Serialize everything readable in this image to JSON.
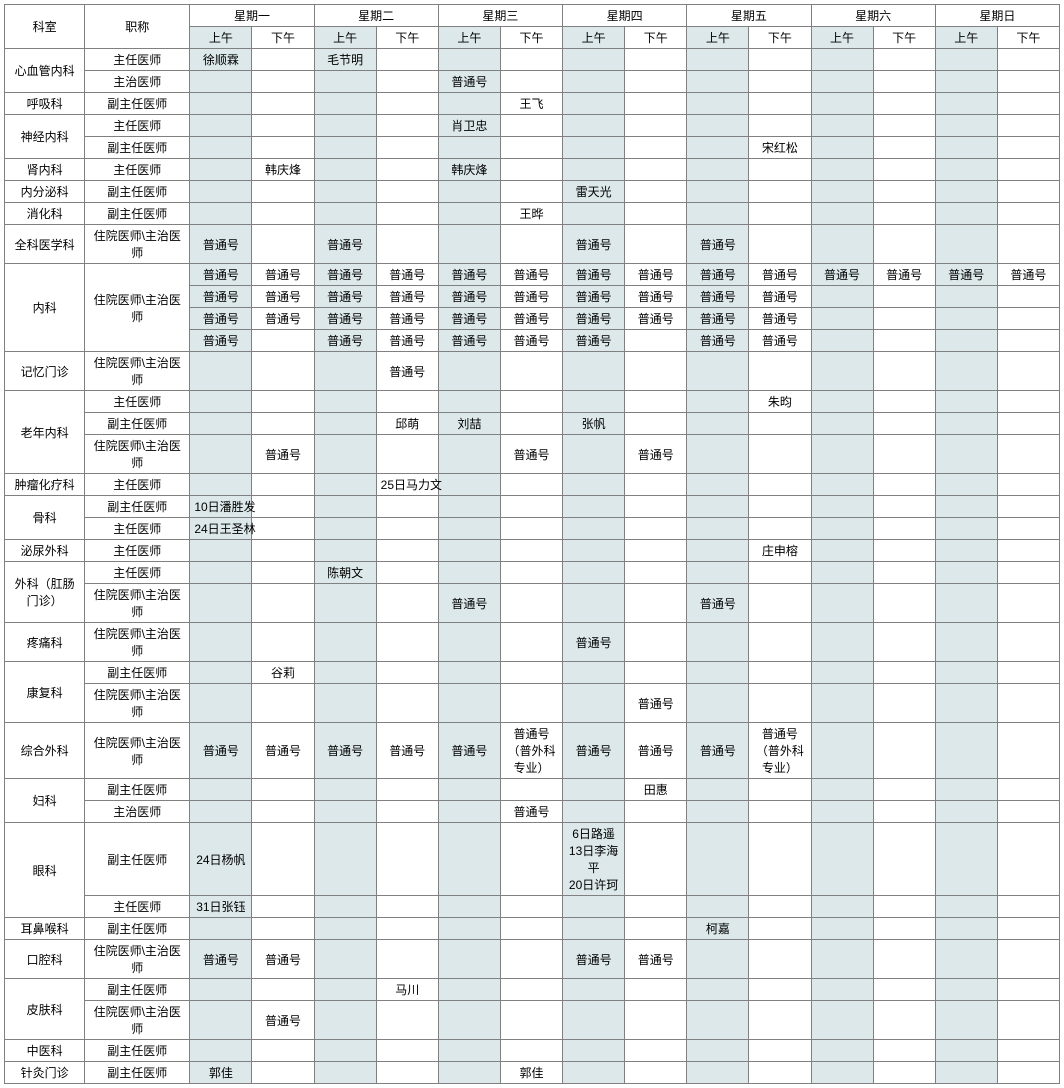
{
  "colors": {
    "am_bg": "#dce8ea",
    "border": "#808080",
    "bg": "#ffffff",
    "text": "#000000"
  },
  "fontsize": 12,
  "header": {
    "dept": "科室",
    "title": "职称",
    "days": [
      "星期一",
      "星期二",
      "星期三",
      "星期四",
      "星期五",
      "星期六",
      "星期日"
    ],
    "am": "上午",
    "pm": "下午"
  },
  "rows": [
    {
      "dept": "心血管内科",
      "deptRowspan": 2,
      "title": "主任医师",
      "cells": [
        "徐顺霖",
        "",
        "毛节明",
        "",
        "",
        "",
        "",
        "",
        "",
        "",
        "",
        "",
        "",
        ""
      ]
    },
    {
      "title": "主治医师",
      "cells": [
        "",
        "",
        "",
        "",
        "普通号",
        "",
        "",
        "",
        "",
        "",
        "",
        "",
        "",
        ""
      ]
    },
    {
      "dept": "呼吸科",
      "deptRowspan": 1,
      "title": "副主任医师",
      "cells": [
        "",
        "",
        "",
        "",
        "",
        "王飞",
        "",
        "",
        "",
        "",
        "",
        "",
        "",
        ""
      ]
    },
    {
      "dept": "神经内科",
      "deptRowspan": 2,
      "title": "主任医师",
      "cells": [
        "",
        "",
        "",
        "",
        "肖卫忠",
        "",
        "",
        "",
        "",
        "",
        "",
        "",
        "",
        ""
      ]
    },
    {
      "title": "副主任医师",
      "cells": [
        "",
        "",
        "",
        "",
        "",
        "",
        "",
        "",
        "",
        "宋红松",
        "",
        "",
        "",
        ""
      ]
    },
    {
      "dept": "肾内科",
      "deptRowspan": 1,
      "title": "主任医师",
      "cells": [
        "",
        "韩庆烽",
        "",
        "",
        "韩庆烽",
        "",
        "",
        "",
        "",
        "",
        "",
        "",
        "",
        ""
      ]
    },
    {
      "dept": "内分泌科",
      "deptRowspan": 1,
      "title": "副主任医师",
      "cells": [
        "",
        "",
        "",
        "",
        "",
        "",
        "雷天光",
        "",
        "",
        "",
        "",
        "",
        "",
        ""
      ]
    },
    {
      "dept": "消化科",
      "deptRowspan": 1,
      "title": "副主任医师",
      "cells": [
        "",
        "",
        "",
        "",
        "",
        "王晔",
        "",
        "",
        "",
        "",
        "",
        "",
        "",
        ""
      ]
    },
    {
      "dept": "全科医学科",
      "deptRowspan": 1,
      "title": "住院医师\\主治医师",
      "tall": true,
      "cells": [
        "普通号",
        "",
        "普通号",
        "",
        "",
        "",
        "普通号",
        "",
        "普通号",
        "",
        "",
        "",
        "",
        ""
      ]
    },
    {
      "dept": "内科",
      "deptRowspan": 4,
      "title": "住院医师\\主治医师",
      "titleRowspan": 4,
      "cells": [
        "普通号",
        "普通号",
        "普通号",
        "普通号",
        "普通号",
        "普通号",
        "普通号",
        "普通号",
        "普通号",
        "普通号",
        "普通号",
        "普通号",
        "普通号",
        "普通号"
      ]
    },
    {
      "cells": [
        "普通号",
        "普通号",
        "普通号",
        "普通号",
        "普通号",
        "普通号",
        "普通号",
        "普通号",
        "普通号",
        "普通号",
        "",
        "",
        "",
        ""
      ]
    },
    {
      "cells": [
        "普通号",
        "普通号",
        "普通号",
        "普通号",
        "普通号",
        "普通号",
        "普通号",
        "普通号",
        "普通号",
        "普通号",
        "",
        "",
        "",
        ""
      ]
    },
    {
      "cells": [
        "普通号",
        "",
        "普通号",
        "普通号",
        "普通号",
        "普通号",
        "普通号",
        "",
        "普通号",
        "普通号",
        "",
        "",
        "",
        ""
      ]
    },
    {
      "dept": "记忆门诊",
      "deptRowspan": 1,
      "title": "住院医师\\主治医师",
      "tall": true,
      "cells": [
        "",
        "",
        "",
        "普通号",
        "",
        "",
        "",
        "",
        "",
        "",
        "",
        "",
        "",
        ""
      ]
    },
    {
      "dept": "老年内科",
      "deptRowspan": 3,
      "title": "主任医师",
      "cells": [
        "",
        "",
        "",
        "",
        "",
        "",
        "",
        "",
        "",
        "朱昀",
        "",
        "",
        "",
        ""
      ]
    },
    {
      "title": "副主任医师",
      "cells": [
        "",
        "",
        "",
        "邱萌",
        "刘喆",
        "",
        "张帆",
        "",
        "",
        "",
        "",
        "",
        "",
        ""
      ]
    },
    {
      "title": "住院医师\\主治医师",
      "tall": true,
      "cells": [
        "",
        "普通号",
        "",
        "",
        "",
        "普通号",
        "",
        "普通号",
        "",
        "",
        "",
        "",
        "",
        ""
      ]
    },
    {
      "dept": "肿瘤化疗科",
      "deptRowspan": 1,
      "title": "主任医师",
      "cells": [
        "",
        "",
        "",
        "25日马力文",
        "",
        "",
        "",
        "",
        "",
        "",
        "",
        "",
        "",
        ""
      ]
    },
    {
      "dept": "骨科",
      "deptRowspan": 2,
      "title": "副主任医师",
      "cells": [
        "10日潘胜发",
        "",
        "",
        "",
        "",
        "",
        "",
        "",
        "",
        "",
        "",
        "",
        "",
        ""
      ]
    },
    {
      "title": "主任医师",
      "cells": [
        "24日王圣林",
        "",
        "",
        "",
        "",
        "",
        "",
        "",
        "",
        "",
        "",
        "",
        "",
        ""
      ]
    },
    {
      "dept": "泌尿外科",
      "deptRowspan": 1,
      "title": "主任医师",
      "cells": [
        "",
        "",
        "",
        "",
        "",
        "",
        "",
        "",
        "",
        "庄申榕",
        "",
        "",
        "",
        ""
      ]
    },
    {
      "dept": "外科（肛肠门诊）",
      "deptRowspan": 2,
      "title": "主任医师",
      "cells": [
        "",
        "",
        "陈朝文",
        "",
        "",
        "",
        "",
        "",
        "",
        "",
        "",
        "",
        "",
        ""
      ]
    },
    {
      "title": "住院医师\\主治医师",
      "tall": true,
      "cells": [
        "",
        "",
        "",
        "",
        "普通号",
        "",
        "",
        "",
        "普通号",
        "",
        "",
        "",
        "",
        ""
      ]
    },
    {
      "dept": "疼痛科",
      "deptRowspan": 1,
      "title": "住院医师\\主治医师",
      "tall": true,
      "cells": [
        "",
        "",
        "",
        "",
        "",
        "",
        "普通号",
        "",
        "",
        "",
        "",
        "",
        "",
        ""
      ]
    },
    {
      "dept": "康复科",
      "deptRowspan": 2,
      "title": "副主任医师",
      "cells": [
        "",
        "谷莉",
        "",
        "",
        "",
        "",
        "",
        "",
        "",
        "",
        "",
        "",
        "",
        ""
      ]
    },
    {
      "title": "住院医师\\主治医师",
      "tall": true,
      "cells": [
        "",
        "",
        "",
        "",
        "",
        "",
        "",
        "普通号",
        "",
        "",
        "",
        "",
        "",
        ""
      ]
    },
    {
      "dept": "综合外科",
      "deptRowspan": 1,
      "title": "住院医师\\主治医师",
      "tall": true,
      "height": 48,
      "cells": [
        "普通号",
        "普通号",
        "普通号",
        "普通号",
        "普通号",
        "普通号（普外科专业）",
        "普通号",
        "普通号",
        "普通号",
        "普通号（普外科专业）",
        "",
        "",
        "",
        ""
      ]
    },
    {
      "dept": "妇科",
      "deptRowspan": 2,
      "title": "副主任医师",
      "cells": [
        "",
        "",
        "",
        "",
        "",
        "",
        "",
        "田惠",
        "",
        "",
        "",
        "",
        "",
        ""
      ]
    },
    {
      "title": "主治医师",
      "cells": [
        "",
        "",
        "",
        "",
        "",
        "普通号",
        "",
        "",
        "",
        "",
        "",
        "",
        "",
        ""
      ]
    },
    {
      "dept": "眼科",
      "deptRowspan": 2,
      "title": "副主任医师",
      "height": 72,
      "cells": [
        "24日杨帆",
        "",
        "",
        "",
        "",
        "",
        "6日路遥\n13日李海平\n20日许珂",
        "",
        "",
        "",
        "",
        "",
        "",
        ""
      ]
    },
    {
      "title": "主任医师",
      "cells": [
        "31日张钰",
        "",
        "",
        "",
        "",
        "",
        "",
        "",
        "",
        "",
        "",
        "",
        "",
        ""
      ]
    },
    {
      "dept": "耳鼻喉科",
      "deptRowspan": 1,
      "title": "副主任医师",
      "cells": [
        "",
        "",
        "",
        "",
        "",
        "",
        "",
        "",
        "柯嘉",
        "",
        "",
        "",
        "",
        ""
      ]
    },
    {
      "dept": "口腔科",
      "deptRowspan": 1,
      "title": "住院医师\\主治医师",
      "tall": true,
      "cells": [
        "普通号",
        "普通号",
        "",
        "",
        "",
        "",
        "普通号",
        "普通号",
        "",
        "",
        "",
        "",
        "",
        ""
      ]
    },
    {
      "dept": "皮肤科",
      "deptRowspan": 2,
      "title": "副主任医师",
      "cells": [
        "",
        "",
        "",
        "马川",
        "",
        "",
        "",
        "",
        "",
        "",
        "",
        "",
        "",
        ""
      ]
    },
    {
      "title": "住院医师\\主治医师",
      "tall": true,
      "cells": [
        "",
        "普通号",
        "",
        "",
        "",
        "",
        "",
        "",
        "",
        "",
        "",
        "",
        "",
        ""
      ]
    },
    {
      "dept": "中医科",
      "deptRowspan": 1,
      "title": "副主任医师",
      "cells": [
        "",
        "",
        "",
        "",
        "",
        "",
        "",
        "",
        "",
        "",
        "",
        "",
        "",
        ""
      ]
    },
    {
      "dept": "针灸门诊",
      "deptRowspan": 1,
      "title": "副主任医师",
      "cells": [
        "郭佳",
        "",
        "",
        "",
        "",
        "郭佳",
        "",
        "",
        "",
        "",
        "",
        "",
        "",
        ""
      ]
    }
  ]
}
